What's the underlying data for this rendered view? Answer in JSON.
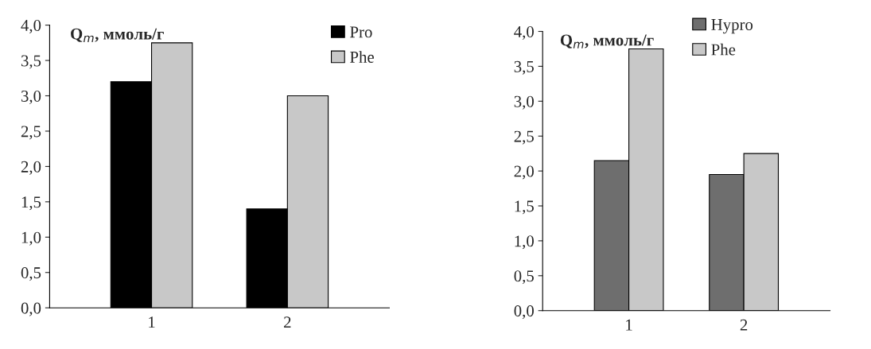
{
  "chart_data": [
    {
      "type": "bar",
      "ylabel": "Q$_{m}$, ммоль/г",
      "categories": [
        "1",
        "2"
      ],
      "series": [
        {
          "name": "Pro",
          "color": "#000000",
          "values": [
            3.2,
            1.4
          ]
        },
        {
          "name": "Phe",
          "color": "#c8c8c8",
          "values": [
            3.75,
            3.0
          ]
        }
      ],
      "ylim": [
        0,
        4
      ],
      "yticks": [
        {
          "value": 0,
          "label": "0,0"
        },
        {
          "value": 0.5,
          "label": "0,5"
        },
        {
          "value": 1,
          "label": "1,0"
        },
        {
          "value": 1.5,
          "label": "1,5"
        },
        {
          "value": 2,
          "label": "2,0"
        },
        {
          "value": 2.5,
          "label": "2,5"
        },
        {
          "value": 3,
          "label": "3,0"
        },
        {
          "value": 3.5,
          "label": "3,5"
        },
        {
          "value": 4,
          "label": "4,0"
        }
      ],
      "legend": "top right",
      "grid": false
    },
    {
      "type": "bar",
      "ylabel": "Q$_{m}$, ммоль/г",
      "categories": [
        "1",
        "2"
      ],
      "series": [
        {
          "name": "Hypro",
          "color": "#6e6e6e",
          "values": [
            2.15,
            1.95
          ]
        },
        {
          "name": "Phe",
          "color": "#c8c8c8",
          "values": [
            3.75,
            2.25
          ]
        }
      ],
      "ylim": [
        0,
        4
      ],
      "yticks": [
        {
          "value": 0,
          "label": "0,0"
        },
        {
          "value": 0.5,
          "label": "0,5"
        },
        {
          "value": 1,
          "label": "1,0"
        },
        {
          "value": 1.5,
          "label": "1,5"
        },
        {
          "value": 2,
          "label": "2,0"
        },
        {
          "value": 2.5,
          "label": "2,5"
        },
        {
          "value": 3,
          "label": "3,0"
        },
        {
          "value": 3.5,
          "label": "3,5"
        },
        {
          "value": 4,
          "label": "4,0"
        }
      ],
      "legend": "top",
      "grid": false
    }
  ]
}
